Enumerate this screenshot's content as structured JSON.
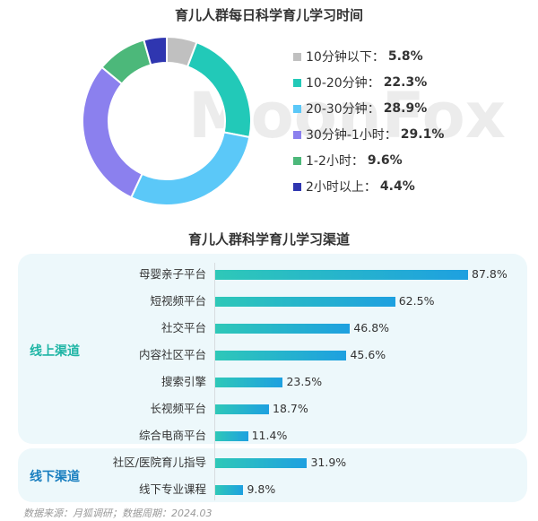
{
  "chart_data": [
    {
      "type": "pie",
      "title": "育儿人群每日科学育儿学习时间",
      "donut": true,
      "slices": [
        {
          "label": "10分钟以下",
          "value": 5.8,
          "display": "5.8%",
          "color": "#c0c0c0"
        },
        {
          "label": "10-20分钟",
          "value": 22.3,
          "display": "22.3%",
          "color": "#22c9b8"
        },
        {
          "label": "20-30分钟",
          "value": 28.9,
          "display": "28.9%",
          "color": "#5bc8f8"
        },
        {
          "label": "30分钟-1小时",
          "value": 29.1,
          "display": "29.1%",
          "color": "#8b80ee"
        },
        {
          "label": "1-2小时",
          "value": 9.6,
          "display": "9.6%",
          "color": "#4cb87a"
        },
        {
          "label": "2小时以上",
          "value": 4.4,
          "display": "4.4%",
          "color": "#2f36b0"
        }
      ],
      "legend": "right"
    },
    {
      "type": "bar",
      "orientation": "horizontal",
      "title": "育儿人群科学育儿学习渠道",
      "groups": [
        {
          "label": "线上渠道",
          "color": "#1fb5a5",
          "categories": [
            "母婴亲子平台",
            "短视频平台",
            "社交平台",
            "内容社区平台",
            "搜索引擎",
            "长视频平台",
            "综合电商平台"
          ],
          "values": [
            87.8,
            62.5,
            46.8,
            45.6,
            23.5,
            18.7,
            11.4
          ],
          "labels": [
            "87.8%",
            "62.5%",
            "46.8%",
            "45.6%",
            "23.5%",
            "18.7%",
            "11.4%"
          ]
        },
        {
          "label": "线下渠道",
          "color": "#1a7fc0",
          "categories": [
            "社区/医院育儿指导",
            "线下专业课程"
          ],
          "values": [
            31.9,
            9.8
          ],
          "labels": [
            "31.9%",
            "9.8%"
          ]
        }
      ]
    }
  ],
  "footer": "数据来源：月狐调研；数据周期：2024.03",
  "watermark": "MoonFox"
}
